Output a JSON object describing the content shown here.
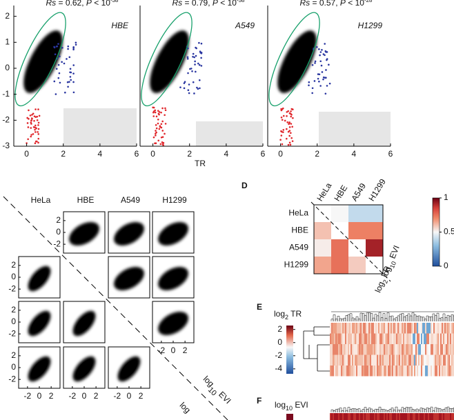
{
  "panel_b": {
    "type": "scatter",
    "plots": [
      {
        "label": "HBE",
        "title": [
          "Rs",
          " = 0.62, ",
          "P",
          " < 10"
        ],
        "exponent": "-38"
      },
      {
        "label": "A549",
        "title": [
          "Rs",
          " = 0.79, ",
          "P",
          " < 10"
        ],
        "exponent": "-58"
      },
      {
        "label": "H1299",
        "title": [
          "Rs",
          " = 0.57, ",
          "P",
          " < 10"
        ],
        "exponent": "-28"
      }
    ],
    "x_label": "TR",
    "xlim": [
      -0.7,
      6
    ],
    "ylim": [
      -3,
      2.15
    ],
    "xticks": [
      0,
      2,
      4,
      6
    ],
    "yticks": [
      2,
      1,
      0,
      -1,
      -2,
      -3
    ]
  },
  "panel_c": {
    "type": "scatter_matrix",
    "columns": [
      "HeLa",
      "HBE",
      "A549",
      "H1299"
    ],
    "lim": [
      -3.5,
      3.5
    ],
    "xticks": [
      -2,
      0,
      2
    ],
    "yticks": [
      2,
      0,
      -2
    ],
    "diagonal_label": {
      "base": "log",
      "sub": "10",
      "rest": " EVI"
    },
    "diagonal_label_2": "log"
  },
  "panel_d": {
    "type": "heatmap",
    "letter": "D",
    "rows": [
      "HeLa",
      "HBE",
      "A549",
      "H1299"
    ],
    "columns": [
      "HeLa",
      "HBE",
      "A549",
      "H1299"
    ],
    "matrix": [
      [
        null,
        0.5,
        0.4,
        0.4
      ],
      [
        0.6,
        null,
        0.72,
        0.72
      ],
      [
        0.52,
        0.75,
        null,
        0.92
      ],
      [
        0.65,
        0.75,
        0.58,
        null
      ]
    ],
    "colorbar_lim": [
      0,
      1
    ],
    "colorbar_ticks": [
      1,
      0.5,
      0
    ],
    "upper_label": {
      "base": "log",
      "sub": "10",
      "rest": " EVI"
    },
    "lower_label": {
      "base": "log",
      "sub": "2",
      "rest": " TR"
    }
  },
  "panel_e": {
    "letter": "E",
    "title": {
      "base": "log",
      "sub": "2",
      "rest": " TR"
    },
    "colorbar_lim": [
      -4.75,
      2.6
    ],
    "colorbar_ticks": [
      2,
      0,
      -2,
      -4
    ]
  },
  "panel_f": {
    "letter": "F",
    "title": {
      "base": "log",
      "sub": "10",
      "rest": " EVI"
    }
  }
}
